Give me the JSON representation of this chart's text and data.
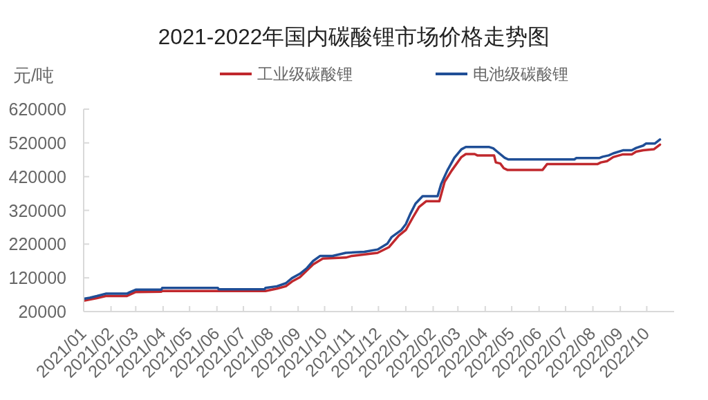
{
  "chart_data": {
    "type": "line",
    "title": "2021-2022年国内碳酸锂市场价格走势图",
    "ylabel": "元/吨",
    "xlim": [
      "2021-01-01",
      "2022-11-01"
    ],
    "xticks": [
      {
        "value": "2021-01",
        "label": "2021/01"
      },
      {
        "value": "2021-02",
        "label": "2021/02"
      },
      {
        "value": "2021-03",
        "label": "2021/03"
      },
      {
        "value": "2021-04",
        "label": "2021/04"
      },
      {
        "value": "2021-05",
        "label": "2021/05"
      },
      {
        "value": "2021-06",
        "label": "2021/06"
      },
      {
        "value": "2021-07",
        "label": "2021/07"
      },
      {
        "value": "2021-08",
        "label": "2021/08"
      },
      {
        "value": "2021-09",
        "label": "2021/09"
      },
      {
        "value": "2021-10",
        "label": "2021/10"
      },
      {
        "value": "2021-11",
        "label": "2021/11"
      },
      {
        "value": "2021-12",
        "label": "2021/12"
      },
      {
        "value": "2022-01",
        "label": "2022/01"
      },
      {
        "value": "2022-02",
        "label": "2022/02"
      },
      {
        "value": "2022-03",
        "label": "2022/03"
      },
      {
        "value": "2022-04",
        "label": "2022/04"
      },
      {
        "value": "2022-05",
        "label": "2022/05"
      },
      {
        "value": "2022-06",
        "label": "2022/06"
      },
      {
        "value": "2022-07",
        "label": "2022/07"
      },
      {
        "value": "2022-08",
        "label": "2022/08"
      },
      {
        "value": "2022-09",
        "label": "2022/09"
      },
      {
        "value": "2022-10",
        "label": "2022/10"
      }
    ],
    "ylim": [
      20000,
      620000
    ],
    "yticks": [
      20000,
      120000,
      220000,
      320000,
      420000,
      520000,
      620000
    ],
    "legend": "top",
    "marker": "none",
    "line_style": "solid",
    "series": [
      {
        "name": "工业级碳酸锂",
        "color": "#c0282d",
        "x": [
          "2021-01-01",
          "2021-01-16",
          "2021-01-26",
          "2021-02-19",
          "2021-02-22",
          "2021-03-01",
          "2021-03-30",
          "2021-03-31",
          "2021-07-26",
          "2021-08-08",
          "2021-08-18",
          "2021-08-25",
          "2021-09-03",
          "2021-09-18",
          "2021-09-29",
          "2021-10-25",
          "2021-11-01",
          "2021-11-30",
          "2021-12-13",
          "2021-12-24",
          "2022-01-01",
          "2022-01-09",
          "2022-01-16",
          "2022-01-24",
          "2022-02-08",
          "2022-02-14",
          "2022-02-22",
          "2022-03-05",
          "2022-03-10",
          "2022-03-20",
          "2022-03-23",
          "2022-04-11",
          "2022-04-13",
          "2022-04-18",
          "2022-04-22",
          "2022-04-26",
          "2022-06-05",
          "2022-06-10",
          "2022-08-06",
          "2022-08-10",
          "2022-08-17",
          "2022-08-24",
          "2022-09-04",
          "2022-09-14",
          "2022-09-19",
          "2022-09-27",
          "2022-10-09",
          "2022-10-16"
        ],
        "values": [
          52000,
          60000,
          66000,
          66000,
          70000,
          78000,
          79000,
          81000,
          81000,
          88000,
          95000,
          109000,
          122000,
          160000,
          177000,
          180000,
          185000,
          194000,
          211000,
          245000,
          262000,
          299000,
          330000,
          347000,
          347000,
          405000,
          438000,
          478000,
          487000,
          487000,
          483000,
          483000,
          462000,
          459000,
          445000,
          440000,
          440000,
          457000,
          457000,
          462000,
          466000,
          478000,
          486000,
          486000,
          494000,
          498000,
          501000,
          515000
        ]
      },
      {
        "name": "电池级碳酸锂",
        "color": "#1f4e96",
        "x": [
          "2021-01-01",
          "2021-01-08",
          "2021-01-16",
          "2021-01-26",
          "2021-02-19",
          "2021-02-22",
          "2021-03-01",
          "2021-03-30",
          "2021-03-31",
          "2021-06-02",
          "2021-06-03",
          "2021-07-25",
          "2021-07-26",
          "2021-08-08",
          "2021-08-18",
          "2021-08-25",
          "2021-09-03",
          "2021-09-11",
          "2021-09-18",
          "2021-09-26",
          "2021-10-10",
          "2021-10-25",
          "2021-11-15",
          "2021-11-30",
          "2021-12-11",
          "2021-12-16",
          "2021-12-27",
          "2022-01-01",
          "2022-01-06",
          "2022-01-12",
          "2022-01-20",
          "2022-02-06",
          "2022-02-10",
          "2022-02-17",
          "2022-02-25",
          "2022-03-05",
          "2022-03-10",
          "2022-04-05",
          "2022-04-10",
          "2022-04-15",
          "2022-04-23",
          "2022-04-27",
          "2022-07-11",
          "2022-07-13",
          "2022-08-08",
          "2022-08-12",
          "2022-08-19",
          "2022-08-24",
          "2022-09-04",
          "2022-09-14",
          "2022-09-19",
          "2022-09-27",
          "2022-09-30",
          "2022-10-10",
          "2022-10-16"
        ],
        "values": [
          58000,
          61000,
          66000,
          73000,
          73000,
          77000,
          85000,
          85000,
          90000,
          90000,
          86000,
          86000,
          90000,
          95000,
          104000,
          119000,
          132000,
          149000,
          170000,
          185000,
          185000,
          194000,
          197000,
          204000,
          221000,
          241000,
          262000,
          279000,
          309000,
          340000,
          362000,
          362000,
          398000,
          438000,
          476000,
          501000,
          508000,
          508000,
          504000,
          493000,
          476000,
          471000,
          471000,
          475000,
          475000,
          479000,
          483000,
          489000,
          498000,
          498000,
          505000,
          512000,
          518000,
          518000,
          530000
        ]
      }
    ]
  }
}
